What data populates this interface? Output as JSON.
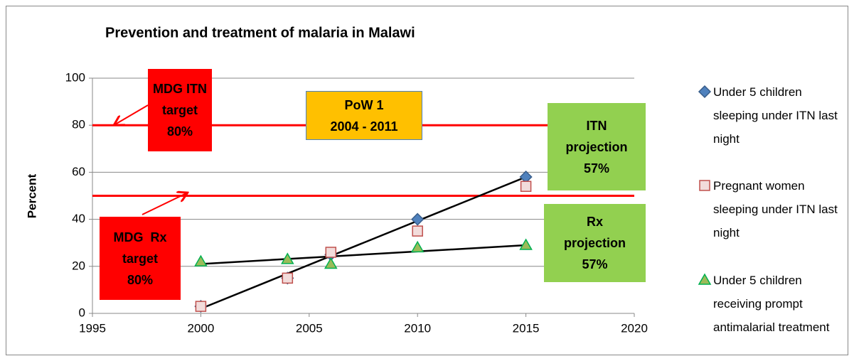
{
  "chart_data": {
    "type": "scatter",
    "title": "Prevention and treatment of malaria in Malawi",
    "ylabel": "Percent",
    "x": [
      2000,
      2004,
      2006,
      2010,
      2015
    ],
    "series": [
      {
        "name": "Under 5 children sleeping under ITN last night",
        "color": "#4f81bd",
        "marker": "diamond",
        "values": [
          3,
          15,
          25,
          40,
          58
        ]
      },
      {
        "name": "Pregnant women sleeping under ITN last night",
        "color": "#c0504d",
        "marker": "square",
        "values": [
          3,
          15,
          26,
          35,
          54
        ]
      },
      {
        "name": "Under 5 children receiving prompt antimalarial treatment",
        "color": "#00b050",
        "marker": "triangle",
        "values": [
          22,
          23,
          21,
          28,
          29
        ]
      }
    ],
    "trendlines": [
      {
        "x": [
          2000,
          2015
        ],
        "y": [
          2,
          58
        ],
        "color": "#000000"
      },
      {
        "x": [
          2000,
          2015
        ],
        "y": [
          21,
          29
        ],
        "color": "#000000"
      }
    ],
    "reference_lines": [
      80,
      50
    ],
    "reference_color": "#ff0000",
    "annotations": [
      {
        "lines": [
          "MDG ITN",
          "target",
          "80%"
        ],
        "color": "#ff0000"
      },
      {
        "lines": [
          "PoW 1",
          "2004 - 2011"
        ],
        "color": "#ffc000"
      },
      {
        "lines": [
          "ITN",
          "projection",
          "57%"
        ],
        "color": "#92d050"
      },
      {
        "lines": [
          "MDG  Rx",
          "target",
          "80%"
        ],
        "color": "#ff0000"
      },
      {
        "lines": [
          "Rx",
          "projection",
          "57%"
        ],
        "color": "#92d050"
      }
    ],
    "xlim": [
      1995,
      2020
    ],
    "xticks": [
      1995,
      2000,
      2005,
      2010,
      2015,
      2020
    ],
    "ylim": [
      0,
      100
    ],
    "yticks": [
      0,
      20,
      40,
      60,
      80,
      100
    ],
    "grid": true,
    "legend": "right"
  }
}
